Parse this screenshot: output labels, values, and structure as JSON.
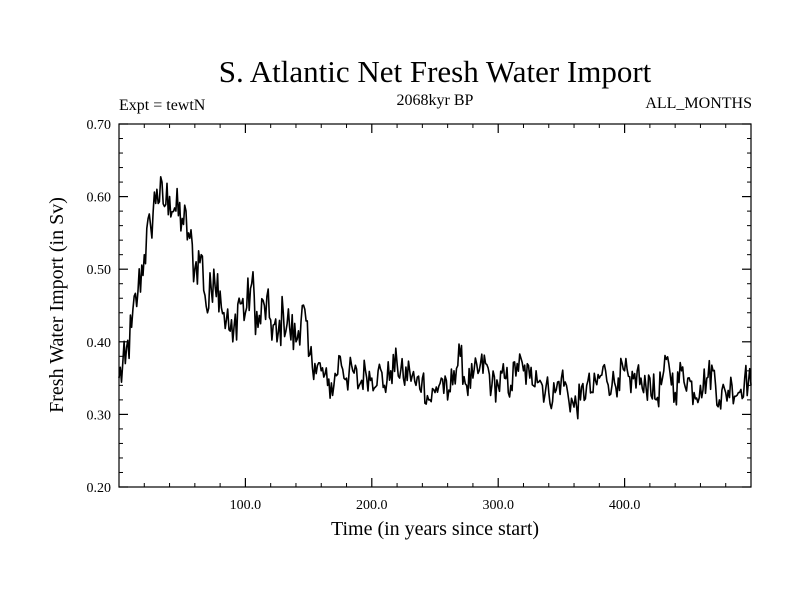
{
  "chart_data": {
    "type": "line",
    "title": "S. Atlantic Net Fresh Water Import",
    "subtitle_left": "Expt = tewtN",
    "subtitle_center": "2068kyr BP",
    "subtitle_right": "ALL_MONTHS",
    "xlabel": "Time (in years since start)",
    "ylabel": "Fresh Water Import (in Sv)",
    "xlim": [
      0,
      500
    ],
    "ylim": [
      0.2,
      0.7
    ],
    "xticks": [
      100,
      200,
      300,
      400
    ],
    "xtick_labels": [
      "100.0",
      "200.0",
      "300.0",
      "400.0"
    ],
    "yticks": [
      0.2,
      0.3,
      0.4,
      0.5,
      0.6,
      0.7
    ],
    "ytick_labels": [
      "0.20",
      "0.30",
      "0.40",
      "0.50",
      "0.60",
      "0.70"
    ],
    "grid": false,
    "series": [
      {
        "name": "S. Atlantic net fresh water import",
        "color": "#000000",
        "x": [
          0,
          5,
          10,
          15,
          20,
          25,
          30,
          35,
          40,
          45,
          50,
          55,
          60,
          65,
          70,
          75,
          80,
          85,
          90,
          95,
          100,
          105,
          110,
          115,
          120,
          125,
          130,
          135,
          140,
          145,
          150,
          155,
          160,
          165,
          170,
          175,
          180,
          185,
          190,
          195,
          200,
          205,
          210,
          215,
          220,
          225,
          230,
          235,
          240,
          245,
          250,
          255,
          260,
          265,
          270,
          275,
          280,
          285,
          290,
          295,
          300,
          305,
          310,
          315,
          320,
          325,
          330,
          335,
          340,
          345,
          350,
          355,
          360,
          365,
          370,
          375,
          380,
          385,
          390,
          395,
          400,
          405,
          410,
          415,
          420,
          425,
          430,
          435,
          440,
          445,
          450,
          455,
          460,
          465,
          470,
          475,
          480,
          485,
          490,
          495,
          500
        ],
        "values": [
          0.35,
          0.37,
          0.42,
          0.47,
          0.52,
          0.56,
          0.61,
          0.59,
          0.6,
          0.58,
          0.57,
          0.55,
          0.5,
          0.52,
          0.44,
          0.5,
          0.47,
          0.43,
          0.4,
          0.46,
          0.44,
          0.48,
          0.42,
          0.45,
          0.43,
          0.4,
          0.44,
          0.42,
          0.4,
          0.45,
          0.38,
          0.37,
          0.36,
          0.34,
          0.34,
          0.38,
          0.35,
          0.36,
          0.34,
          0.36,
          0.35,
          0.36,
          0.34,
          0.36,
          0.37,
          0.35,
          0.36,
          0.34,
          0.35,
          0.32,
          0.33,
          0.35,
          0.32,
          0.36,
          0.38,
          0.34,
          0.35,
          0.36,
          0.37,
          0.34,
          0.34,
          0.35,
          0.34,
          0.37,
          0.36,
          0.35,
          0.36,
          0.34,
          0.33,
          0.33,
          0.35,
          0.33,
          0.31,
          0.32,
          0.34,
          0.33,
          0.35,
          0.36,
          0.34,
          0.35,
          0.36,
          0.33,
          0.36,
          0.33,
          0.35,
          0.32,
          0.35,
          0.37,
          0.33,
          0.36,
          0.35,
          0.33,
          0.34,
          0.35,
          0.36,
          0.32,
          0.33,
          0.34,
          0.33,
          0.35,
          0.34
        ]
      }
    ]
  }
}
